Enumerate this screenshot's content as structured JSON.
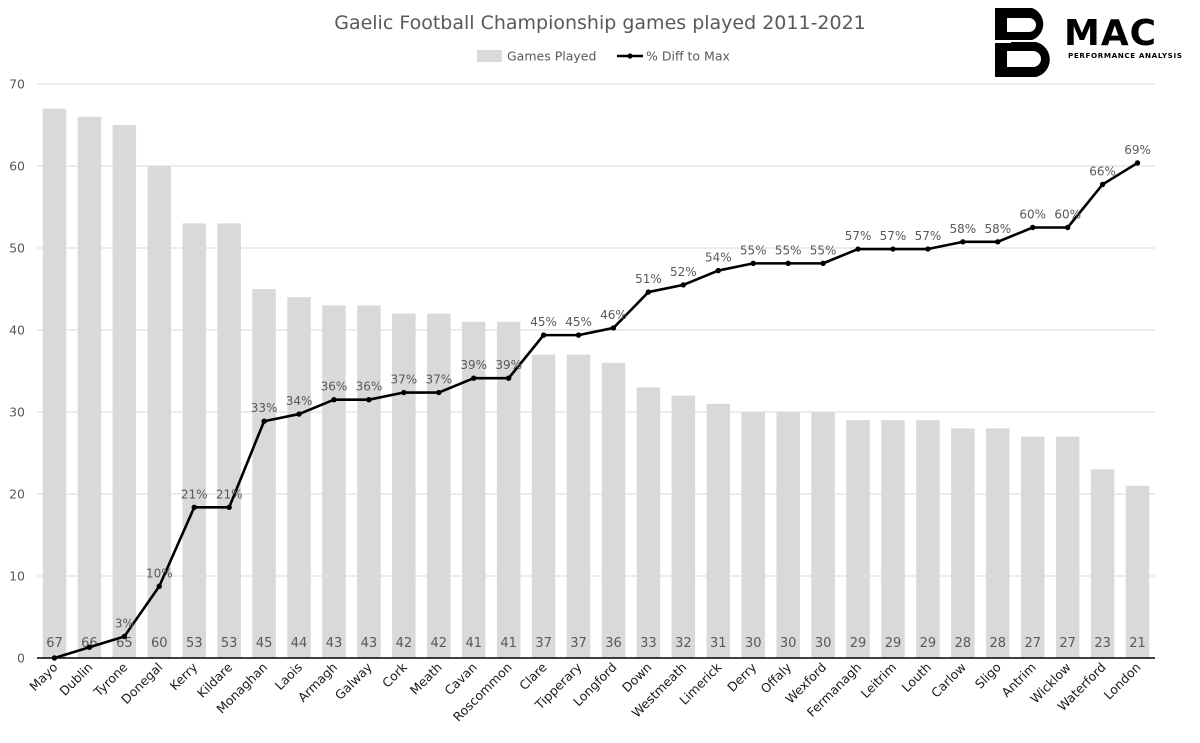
{
  "logo": {
    "mark": "B",
    "name": "MAC",
    "tagline": "PERFORMANCE ANALYSIS"
  },
  "chart_data": {
    "type": "bar",
    "title": "Gaelic Football Championship games played 2011-2021",
    "xlabel": "",
    "ylabel": "",
    "ylim": [
      0,
      70
    ],
    "yticks": [
      0,
      10,
      20,
      30,
      40,
      50,
      60,
      70
    ],
    "grid": true,
    "legend_position": "top-center",
    "categories": [
      "Mayo",
      "Dublin",
      "Tyrone",
      "Donegal",
      "Kerry",
      "Kildare",
      "Monaghan",
      "Laois",
      "Armagh",
      "Galway",
      "Cork",
      "Meath",
      "Cavan",
      "Roscommon",
      "Clare",
      "Tipperary",
      "Longford",
      "Down",
      "Westmeath",
      "Limerick",
      "Derry",
      "Offaly",
      "Wexford",
      "Fermanagh",
      "Leitrim",
      "Louth",
      "Carlow",
      "Sligo",
      "Antrim",
      "Wicklow",
      "Waterford",
      "London"
    ],
    "series": [
      {
        "name": "Games Played",
        "type": "bar",
        "color": "#d9d9d9",
        "values": [
          67,
          66,
          65,
          60,
          53,
          53,
          45,
          44,
          43,
          43,
          42,
          42,
          41,
          41,
          37,
          37,
          36,
          33,
          32,
          31,
          30,
          30,
          30,
          29,
          29,
          29,
          28,
          28,
          27,
          27,
          23,
          21
        ]
      },
      {
        "name": "% Diff to Max",
        "type": "line",
        "color": "#000000",
        "values": [
          0,
          1.5,
          3,
          10,
          21,
          21,
          33,
          34,
          36,
          36,
          37,
          37,
          39,
          39,
          45,
          45,
          46,
          51,
          52,
          54,
          55,
          55,
          55,
          57,
          57,
          57,
          58,
          58,
          60,
          60,
          66,
          69
        ],
        "labels": [
          "",
          "",
          "3%",
          "10%",
          "21%",
          "21%",
          "33%",
          "34%",
          "36%",
          "36%",
          "37%",
          "37%",
          "39%",
          "39%",
          "45%",
          "45%",
          "46%",
          "51%",
          "52%",
          "54%",
          "55%",
          "55%",
          "55%",
          "57%",
          "57%",
          "57%",
          "58%",
          "58%",
          "60%",
          "60%",
          "66%",
          "69%"
        ]
      }
    ]
  }
}
